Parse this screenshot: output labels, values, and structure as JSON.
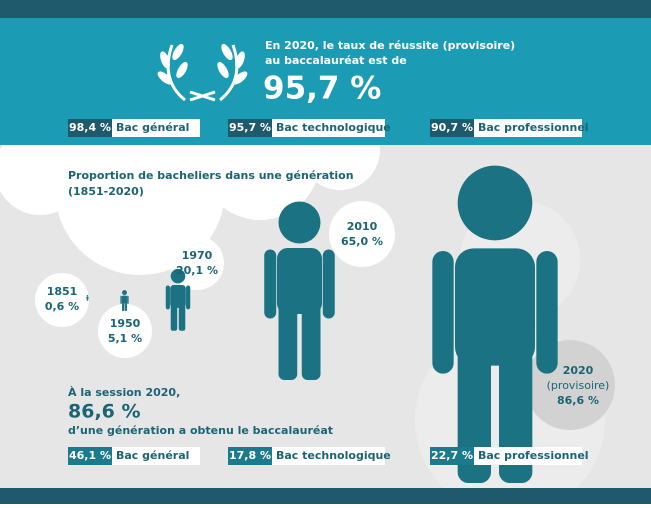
{
  "header": {
    "line1": "En 2020, le taux de réussite (provisoire)",
    "line2": "au baccalauréat est de",
    "rate": "95,7 %"
  },
  "top_stats": [
    {
      "value": "98,4 %",
      "label": "Bac général"
    },
    {
      "value": "95,7 %",
      "label": "Bac technologique"
    },
    {
      "value": "90,7 %",
      "label": "Bac professionnel"
    }
  ],
  "section": {
    "title": "Proportion de bacheliers dans une génération",
    "period": "(1851-2020)"
  },
  "years": [
    {
      "year": "1851",
      "value": "0,6 %"
    },
    {
      "year": "1950",
      "value": "5,1 %"
    },
    {
      "year": "1970",
      "value": "20,1 %"
    },
    {
      "year": "2010",
      "value": "65,0 %"
    },
    {
      "year": "2020",
      "note": "(provisoire)",
      "value": "86,6 %"
    }
  ],
  "session": {
    "line1": "À la session 2020,",
    "rate": "86,6 %",
    "line2": "d’une génération a obtenu le baccalauréat"
  },
  "bottom_stats": [
    {
      "value": "46,1 %",
      "label": "Bac général"
    },
    {
      "value": "17,8 %",
      "label": "Bac technologique"
    },
    {
      "value": "22,7 %",
      "label": "Bac professionnel"
    }
  ]
}
